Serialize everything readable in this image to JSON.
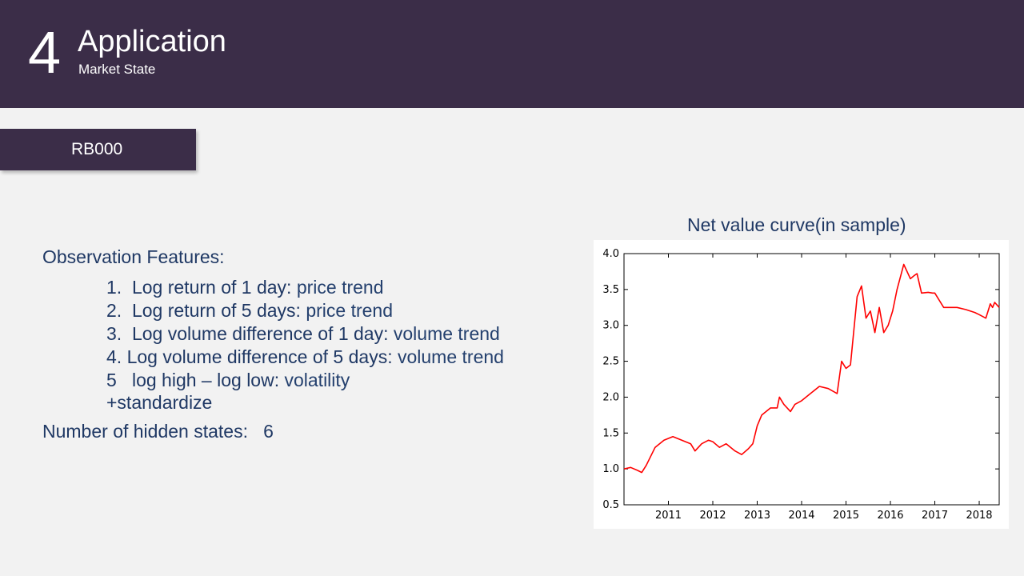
{
  "header": {
    "section_number": "4",
    "title": "Application",
    "subtitle": "Market State"
  },
  "tag": {
    "label": "RB000"
  },
  "content": {
    "observation_heading": "Observation Features:",
    "features": [
      {
        "num": "1.",
        "text": "Log return of 1 day: ",
        "trend": "price trend"
      },
      {
        "num": "2.",
        "text": "Log return of 5 days: ",
        "trend": "price trend"
      },
      {
        "num": "3.",
        "text": "Log volume difference of 1 day: ",
        "trend": "volume trend"
      },
      {
        "num": "4.",
        "text": "Log volume difference of 5 days: ",
        "trend": "volume trend"
      },
      {
        "num": "5",
        "text": "log high – log low: ",
        "trend": "volatility"
      }
    ],
    "standardize": "+standardize",
    "hidden_states_label": "Number of hidden states:",
    "hidden_states_value": "6"
  },
  "chart_data": {
    "type": "line",
    "title": "Net value curve(in sample)",
    "xlabel": "",
    "ylabel": "",
    "xlim": [
      2010.0,
      2018.45
    ],
    "ylim": [
      0.5,
      4.0
    ],
    "x_ticks": [
      2011,
      2012,
      2013,
      2014,
      2015,
      2016,
      2017,
      2018
    ],
    "x_tick_labels": [
      "2011",
      "2012",
      "2013",
      "2014",
      "2015",
      "2016",
      "2017",
      "2018"
    ],
    "y_ticks": [
      0.5,
      1.0,
      1.5,
      2.0,
      2.5,
      3.0,
      3.5,
      4.0
    ],
    "y_tick_labels": [
      "0.5",
      "1.0",
      "1.5",
      "2.0",
      "2.5",
      "3.0",
      "3.5",
      "4.0"
    ],
    "grid": false,
    "line_color": "#ff0000",
    "x": [
      2010.0,
      2010.15,
      2010.3,
      2010.4,
      2010.5,
      2010.7,
      2010.9,
      2011.1,
      2011.3,
      2011.5,
      2011.6,
      2011.75,
      2011.9,
      2012.0,
      2012.15,
      2012.3,
      2012.5,
      2012.65,
      2012.8,
      2012.9,
      2013.0,
      2013.1,
      2013.3,
      2013.45,
      2013.5,
      2013.6,
      2013.75,
      2013.85,
      2014.0,
      2014.2,
      2014.4,
      2014.6,
      2014.8,
      2014.9,
      2015.0,
      2015.1,
      2015.25,
      2015.35,
      2015.45,
      2015.55,
      2015.65,
      2015.75,
      2015.85,
      2015.95,
      2016.05,
      2016.15,
      2016.3,
      2016.45,
      2016.55,
      2016.6,
      2016.7,
      2016.85,
      2016.95,
      2017.0,
      2017.2,
      2017.35,
      2017.5,
      2017.7,
      2017.9,
      2018.0,
      2018.15,
      2018.25,
      2018.3,
      2018.35,
      2018.45
    ],
    "y": [
      1.0,
      1.02,
      0.98,
      0.95,
      1.05,
      1.3,
      1.4,
      1.45,
      1.4,
      1.35,
      1.25,
      1.35,
      1.4,
      1.38,
      1.3,
      1.35,
      1.25,
      1.2,
      1.28,
      1.35,
      1.6,
      1.75,
      1.85,
      1.85,
      2.0,
      1.9,
      1.8,
      1.9,
      1.95,
      2.05,
      2.15,
      2.12,
      2.05,
      2.5,
      2.4,
      2.45,
      3.4,
      3.55,
      3.1,
      3.2,
      2.9,
      3.25,
      2.9,
      3.0,
      3.2,
      3.5,
      3.85,
      3.65,
      3.7,
      3.72,
      3.45,
      3.46,
      3.45,
      3.45,
      3.25,
      3.25,
      3.25,
      3.22,
      3.18,
      3.15,
      3.1,
      3.3,
      3.25,
      3.32,
      3.25
    ]
  }
}
